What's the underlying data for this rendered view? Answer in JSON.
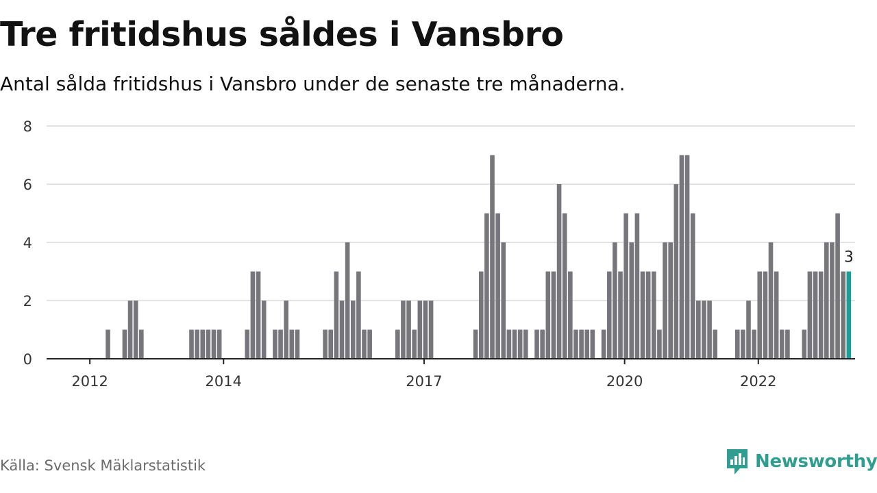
{
  "title": "Tre fritidshus såldes i Vansbro",
  "subtitle": "Antal sålda fritidshus i Vansbro under de senaste tre månaderna.",
  "source": "Källa: Svensk Mäklarstatistik",
  "brand": {
    "name": "Newsworthy",
    "icon": "newsworthy-logo-icon",
    "color": "#2f9e91"
  },
  "chart_data": {
    "type": "bar",
    "title": "Tre fritidshus såldes i Vansbro",
    "subtitle": "Antal sålda fritidshus i Vansbro under de senaste tre månaderna.",
    "xlabel": "",
    "ylabel": "",
    "ylim": [
      0,
      8
    ],
    "y_ticks": [
      "0",
      "2",
      "4",
      "6",
      "8"
    ],
    "x_tick_labels": [
      {
        "label": "2012",
        "index": 5
      },
      {
        "label": "2014",
        "index": 29
      },
      {
        "label": "2017",
        "index": 65
      },
      {
        "label": "2020",
        "index": 101
      },
      {
        "label": "2022",
        "index": 125
      }
    ],
    "grid": true,
    "bar_color": "#76767c",
    "highlight_color": "#1a9e95",
    "highlight_label": "3",
    "values": [
      0,
      0,
      0,
      0,
      0,
      0,
      0,
      0,
      1,
      0,
      0,
      1,
      2,
      2,
      1,
      0,
      0,
      0,
      0,
      0,
      0,
      0,
      0,
      1,
      1,
      1,
      1,
      1,
      1,
      0,
      0,
      0,
      0,
      1,
      3,
      3,
      2,
      0,
      1,
      1,
      2,
      1,
      1,
      0,
      0,
      0,
      0,
      1,
      1,
      3,
      2,
      4,
      2,
      3,
      1,
      1,
      0,
      0,
      0,
      0,
      1,
      2,
      2,
      1,
      2,
      2,
      2,
      0,
      0,
      0,
      0,
      0,
      0,
      0,
      1,
      3,
      5,
      7,
      5,
      4,
      1,
      1,
      1,
      1,
      0,
      1,
      1,
      3,
      3,
      6,
      5,
      3,
      1,
      1,
      1,
      1,
      0,
      1,
      3,
      4,
      3,
      5,
      4,
      5,
      3,
      3,
      3,
      1,
      4,
      4,
      6,
      7,
      7,
      5,
      2,
      2,
      2,
      1,
      0,
      0,
      0,
      1,
      1,
      2,
      1,
      3,
      3,
      4,
      3,
      1,
      1,
      0,
      0,
      1,
      3,
      3,
      3,
      4,
      4,
      5,
      3,
      3
    ]
  }
}
